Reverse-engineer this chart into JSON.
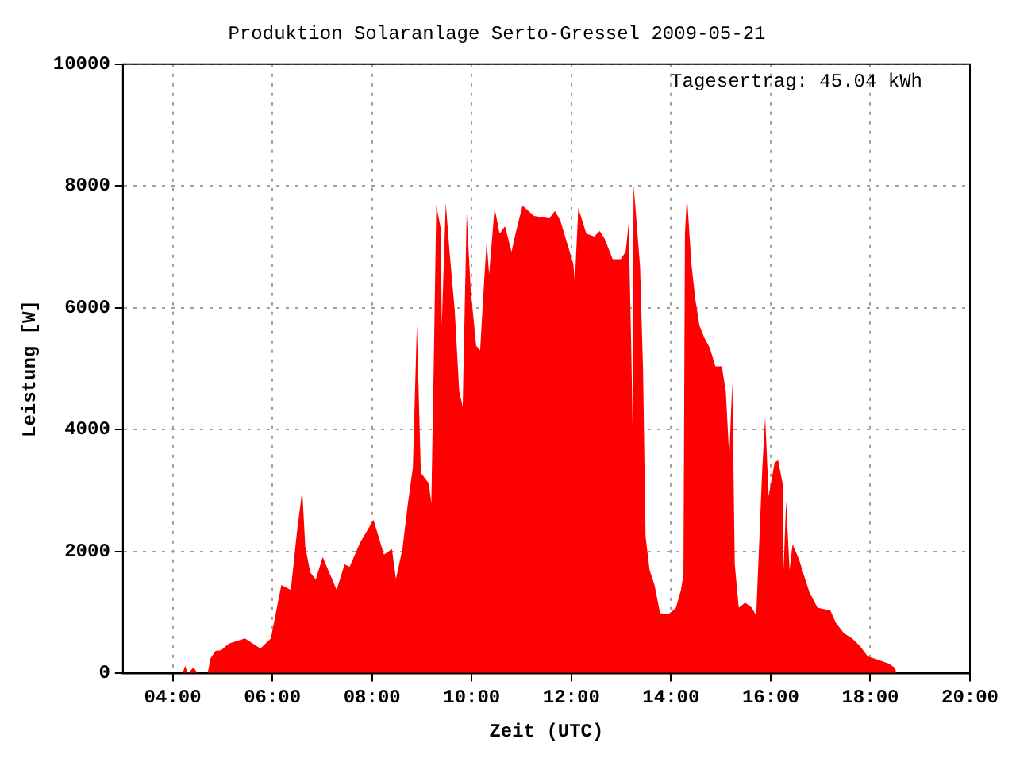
{
  "chart_data": {
    "type": "area",
    "title": "Produktion Solaranlage Serto-Gressel 2009-05-21",
    "xlabel": "Zeit (UTC)",
    "ylabel": "Leistung [W]",
    "annotations": [
      "Tagesertrag: 45.04 kWh"
    ],
    "x": [
      4.2,
      4.25,
      4.3,
      4.42,
      4.5,
      4.7,
      4.76,
      4.86,
      4.97,
      5.13,
      5.45,
      5.76,
      5.97,
      6.18,
      6.37,
      6.5,
      6.6,
      6.66,
      6.76,
      6.87,
      7.01,
      7.29,
      7.45,
      7.55,
      7.77,
      8.03,
      8.24,
      8.4,
      8.48,
      8.61,
      8.72,
      8.82,
      8.9,
      8.98,
      9.14,
      9.19,
      9.24,
      9.29,
      9.38,
      9.4,
      9.48,
      9.56,
      9.66,
      9.75,
      9.82,
      9.9,
      9.98,
      10.09,
      10.17,
      10.24,
      10.3,
      10.35,
      10.46,
      10.56,
      10.67,
      10.8,
      10.88,
      11.02,
      11.25,
      11.56,
      11.67,
      11.78,
      12.04,
      12.07,
      12.14,
      12.3,
      12.46,
      12.57,
      12.67,
      12.83,
      12.99,
      13.09,
      13.15,
      13.2,
      13.23,
      13.25,
      13.3,
      13.38,
      13.44,
      13.49,
      13.57,
      13.67,
      13.78,
      13.94,
      14.04,
      14.1,
      14.2,
      14.25,
      14.28,
      14.32,
      14.41,
      14.49,
      14.57,
      14.67,
      14.78,
      14.89,
      15.02,
      15.1,
      15.17,
      15.23,
      15.28,
      15.36,
      15.49,
      15.62,
      15.71,
      15.78,
      15.83,
      15.89,
      15.96,
      16.08,
      16.15,
      16.24,
      16.26,
      16.31,
      16.38,
      16.44,
      16.57,
      16.68,
      16.78,
      16.94,
      17.2,
      17.31,
      17.47,
      17.63,
      17.79,
      17.95,
      18.1,
      18.37,
      18.5,
      18.52
    ],
    "series": [
      {
        "color": "#ff0000",
        "values": [
          0,
          130,
          0,
          100,
          0,
          0,
          250,
          370,
          380,
          490,
          575,
          410,
          575,
          1450,
          1370,
          2370,
          3000,
          2080,
          1660,
          1540,
          1910,
          1370,
          1790,
          1750,
          2160,
          2520,
          1950,
          2040,
          1550,
          2040,
          2790,
          3380,
          5710,
          3290,
          3120,
          2790,
          5130,
          7680,
          7300,
          5710,
          7720,
          6880,
          5960,
          4630,
          4380,
          7550,
          6300,
          5380,
          5300,
          6300,
          7090,
          6550,
          7640,
          7220,
          7340,
          6920,
          7220,
          7680,
          7510,
          7470,
          7590,
          7430,
          6720,
          6420,
          7640,
          7220,
          7170,
          7260,
          7130,
          6800,
          6800,
          6920,
          7380,
          5460,
          4040,
          8010,
          7510,
          6670,
          4960,
          2250,
          1700,
          1450,
          990,
          970,
          1030,
          1080,
          1370,
          1620,
          7220,
          7840,
          6720,
          6130,
          5710,
          5510,
          5340,
          5040,
          5040,
          4630,
          3540,
          4790,
          1790,
          1080,
          1160,
          1080,
          950,
          2330,
          3330,
          4210,
          2910,
          3460,
          3500,
          3120,
          1700,
          2830,
          1700,
          2120,
          1870,
          1580,
          1330,
          1080,
          1030,
          830,
          660,
          580,
          450,
          280,
          240,
          160,
          90,
          0
        ]
      }
    ],
    "xlim": [
      3,
      20
    ],
    "xticks": [
      {
        "value": 4,
        "label": "04:00"
      },
      {
        "value": 6,
        "label": "06:00"
      },
      {
        "value": 8,
        "label": "08:00"
      },
      {
        "value": 10,
        "label": "10:00"
      },
      {
        "value": 12,
        "label": "12:00"
      },
      {
        "value": 14,
        "label": "14:00"
      },
      {
        "value": 16,
        "label": "16:00"
      },
      {
        "value": 18,
        "label": "18:00"
      },
      {
        "value": 20,
        "label": "20:00"
      }
    ],
    "ylim": [
      0,
      10000
    ],
    "yticks": [
      0,
      2000,
      4000,
      6000,
      8000,
      10000
    ],
    "grid": true,
    "marker": "none"
  }
}
